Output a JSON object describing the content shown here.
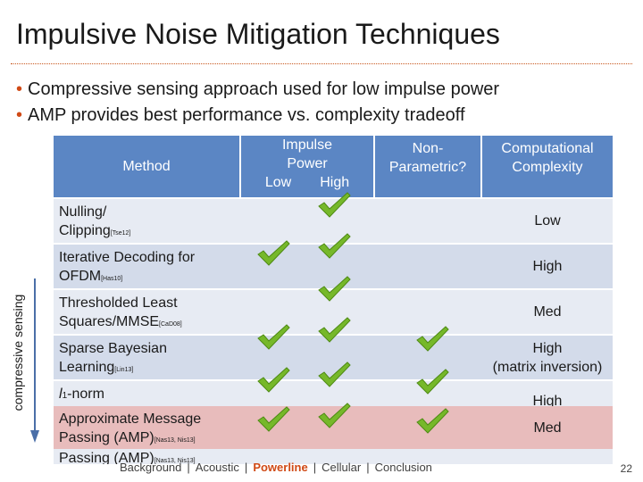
{
  "title": "Impulsive Noise Mitigation Techniques",
  "bullets": [
    "Compressive sensing approach used for low impulse power",
    "AMP provides best performance vs. complexity tradeoff"
  ],
  "table": {
    "headers": {
      "method": "Method",
      "impulse_power_line1": "Impulse",
      "impulse_power_line2": "Power",
      "low": "Low",
      "high": "High",
      "non_parametric_line1": "Non-",
      "non_parametric_line2": "Parametric?",
      "complexity_line1": "Computational",
      "complexity_line2": "Complexity"
    },
    "rows": [
      {
        "method_line1": "Nulling/",
        "method_line2": "Clipping",
        "ref": "[Tse12]",
        "complexity": "Low",
        "complexity_line2": "",
        "low": false,
        "high": true,
        "np": false
      },
      {
        "method_line1": "Iterative Decoding for",
        "method_line2": "OFDM",
        "ref": "[Has10]",
        "complexity": "High",
        "complexity_line2": "",
        "low": true,
        "high": true,
        "np": false
      },
      {
        "method_line1": "Thresholded Least",
        "method_line2": "Squares/MMSE",
        "ref": "[CaD08]",
        "complexity": "Med",
        "complexity_line2": "",
        "low": false,
        "high": true,
        "np": false
      },
      {
        "method_line1": "Sparse Bayesian",
        "method_line2": "Learning",
        "ref": "[Lin13]",
        "complexity": "High",
        "complexity_line2": "(matrix inversion)",
        "low": true,
        "high": true,
        "np": true
      },
      {
        "method_line1": "l",
        "method_line1_sub": "1",
        "method_line1_rest": "-norm",
        "method_line2": "",
        "ref": "",
        "complexity": "High",
        "complexity_line2": "",
        "low": true,
        "high": true,
        "np": true
      },
      {
        "method_line1": "Approximate Message",
        "method_line2": "Passing (AMP)",
        "ref": "[Nas13, Nis13]",
        "complexity": "Med",
        "complexity_line2": "",
        "low": true,
        "high": true,
        "np": true
      },
      {
        "method_line1": "Passing (AMP)",
        "ref": "[Nas13, Nis13]"
      }
    ]
  },
  "side_label": "compressive sensing",
  "footer": {
    "items": [
      "Background",
      "Acoustic",
      "Powerline",
      "Cellular",
      "Conclusion"
    ],
    "active": "Powerline"
  },
  "page_number": "22",
  "colors": {
    "header_bg": "#5b86c4",
    "row_bg": "#e7ebf3",
    "row_bg_alt": "#d3dbea",
    "row_highlight": "#e8bcbc",
    "accent": "#d04a16",
    "check_green": "#76b82a"
  }
}
